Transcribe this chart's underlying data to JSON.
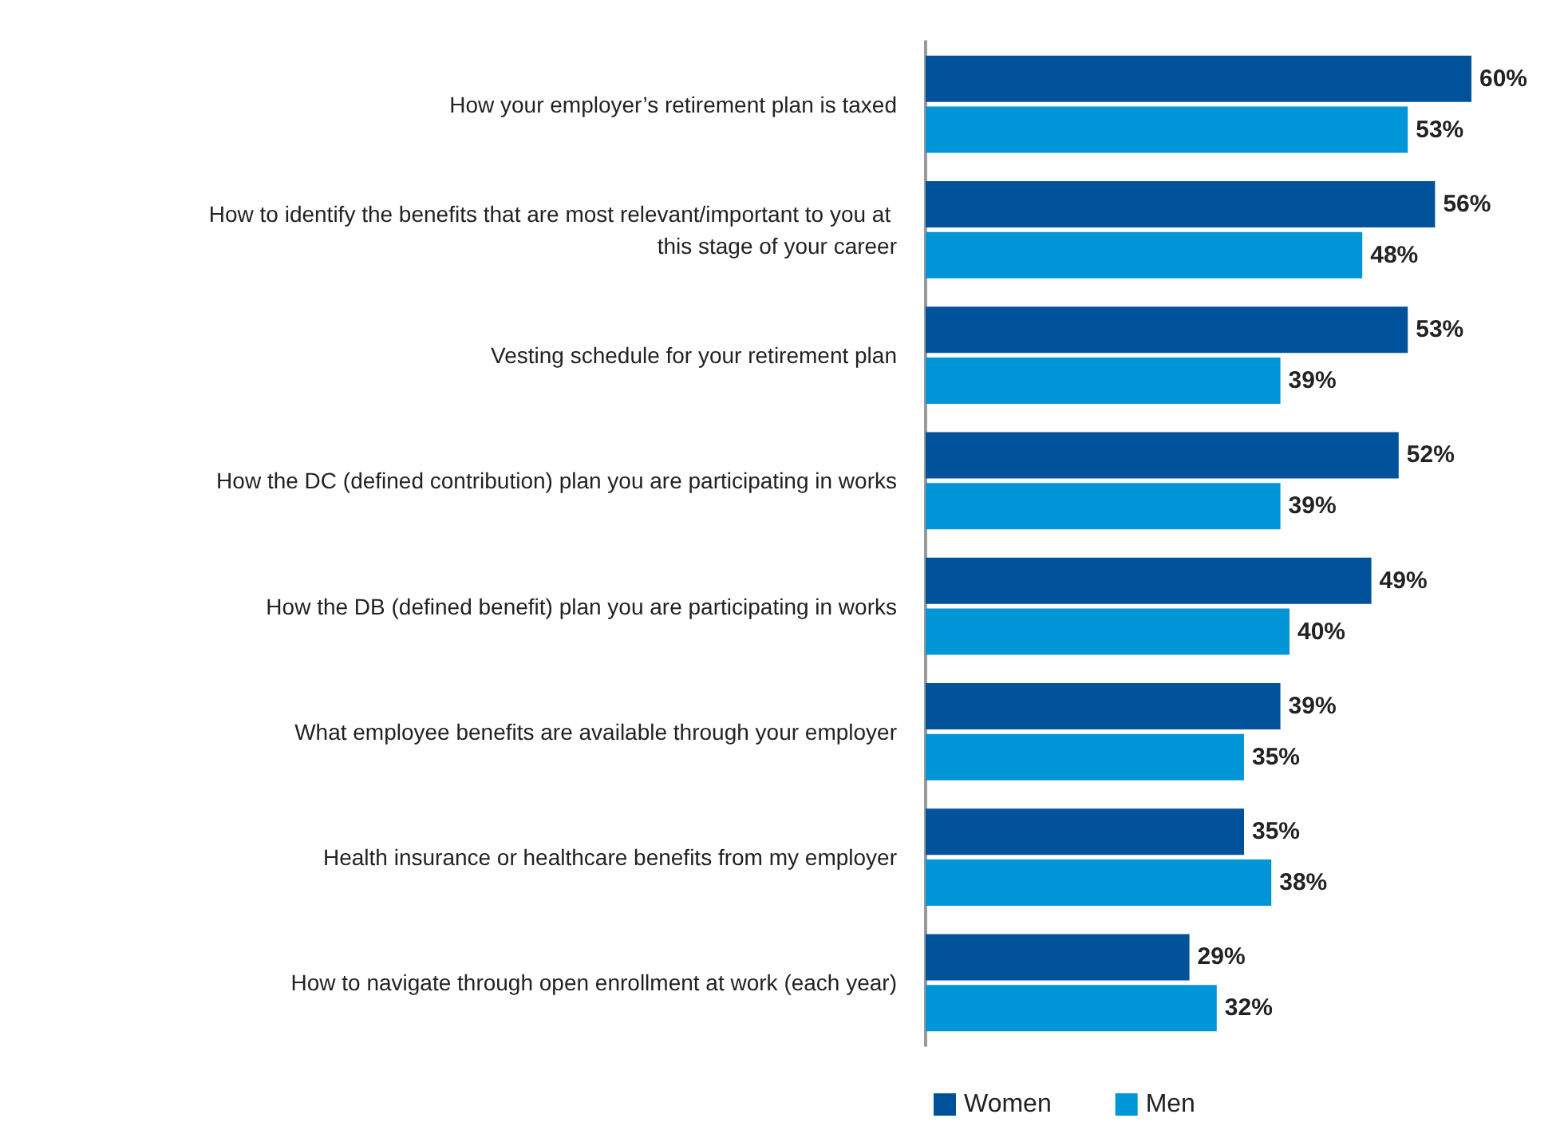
{
  "chart_data": {
    "type": "bar",
    "orientation": "horizontal",
    "legend": "bottom",
    "categories": [
      "How your employer’s retirement plan is taxed",
      "How to identify the benefits that are most relevant/important to you at this stage of your career",
      "Vesting schedule for your retirement plan",
      "How the DC (defined contribution) plan you are participating in works",
      "How the DB (defined benefit) plan you are participating in works",
      "What employee benefits are available through your employer",
      "Health insurance or healthcare benefits from my employer",
      "How to navigate through open enrollment at work (each year)"
    ],
    "series": [
      {
        "name": "Women",
        "color": "#00539b",
        "values": [
          60,
          56,
          53,
          52,
          49,
          39,
          35,
          29
        ],
        "value_labels": [
          "60%",
          "56%",
          "53%",
          "52%",
          "49%",
          "39%",
          "35%",
          "29%"
        ]
      },
      {
        "name": "Men",
        "color": "#0095d6",
        "values": [
          53,
          48,
          39,
          39,
          40,
          35,
          38,
          32
        ],
        "value_labels": [
          "53%",
          "48%",
          "39%",
          "39%",
          "40%",
          "35%",
          "38%",
          "32%"
        ]
      }
    ]
  }
}
